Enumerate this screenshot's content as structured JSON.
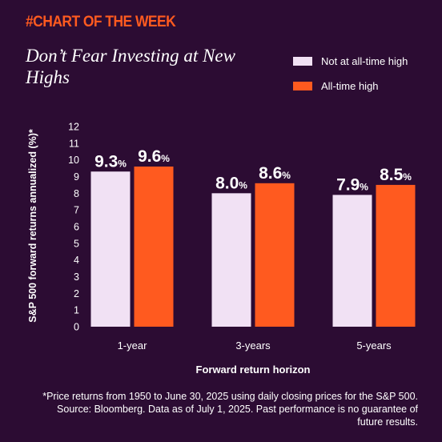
{
  "header": {
    "kicker": "#CHART OF THE WEEK",
    "title": "Don’t Fear Investing at New Highs"
  },
  "colors": {
    "background": "#2c0c33",
    "not_ath": "#f1e1f4",
    "ath": "#ff5a1f",
    "accent": "#ff5a1f"
  },
  "chart_data": {
    "type": "bar",
    "categories": [
      "1-year",
      "3-years",
      "5-years"
    ],
    "series": [
      {
        "name": "Not at all-time high",
        "values": [
          9.3,
          8.0,
          7.9
        ]
      },
      {
        "name": "All-time high",
        "values": [
          9.6,
          8.6,
          8.5
        ]
      }
    ],
    "data_labels": [
      [
        "9.3",
        "8.0",
        "7.9"
      ],
      [
        "9.6",
        "8.6",
        "8.5"
      ]
    ],
    "label_suffix": "%",
    "xlabel": "Forward return horizon",
    "ylabel": "S&P 500 forward returns annualized (%)*",
    "ylim": [
      0,
      12
    ],
    "yticks": [
      0,
      1,
      2,
      3,
      4,
      5,
      6,
      7,
      8,
      9,
      10,
      11,
      12
    ],
    "grid": false,
    "legend_position": "top-right"
  },
  "footnote": "*Price returns from 1950 to June 30, 2025 using daily closing prices for the S&P 500. Source: Bloomberg. Data as of July 1, 2025. Past performance is no guarantee of future results."
}
